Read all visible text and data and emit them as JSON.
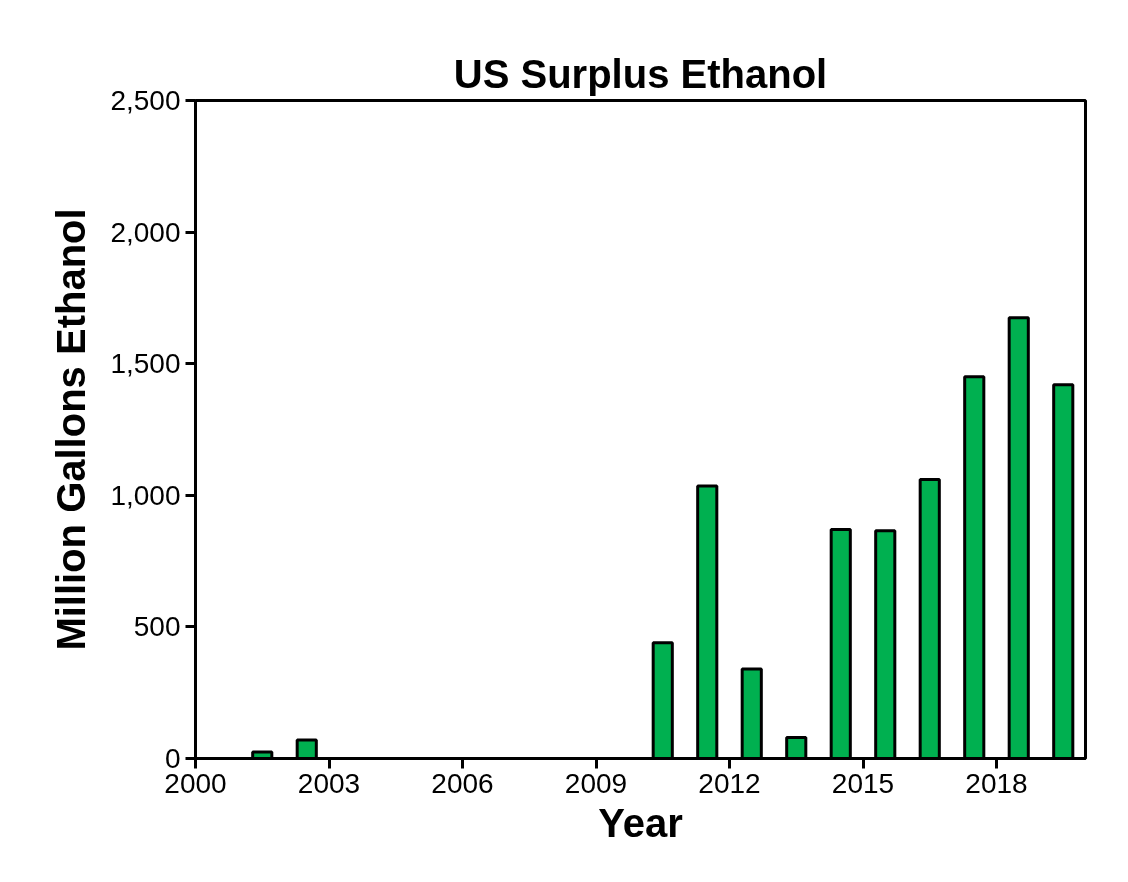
{
  "chart_data": {
    "type": "bar",
    "title": "US Surplus Ethanol",
    "xlabel": "Year",
    "ylabel": "Million Gallons Ethanol",
    "x": [
      2001.5,
      2002.5,
      2010.5,
      2011.5,
      2012.5,
      2013.5,
      2014.5,
      2015.5,
      2016.5,
      2017.5,
      2018.5,
      2019.5
    ],
    "values": [
      25,
      70,
      440,
      1035,
      340,
      80,
      870,
      865,
      1060,
      1450,
      1675,
      1420
    ],
    "color": "#00b050",
    "xlim": [
      2000,
      2020
    ],
    "xticks": [
      2000,
      2003,
      2006,
      2009,
      2012,
      2015,
      2018
    ],
    "ylim": [
      0,
      2500
    ],
    "yticks": [
      {
        "value": 0,
        "label": "0"
      },
      {
        "value": 500,
        "label": "500"
      },
      {
        "value": 1000,
        "label": "1,000"
      },
      {
        "value": 1500,
        "label": "1,500"
      },
      {
        "value": 2000,
        "label": "2,000"
      },
      {
        "value": 2500,
        "label": "2,500"
      }
    ],
    "grid": false
  }
}
